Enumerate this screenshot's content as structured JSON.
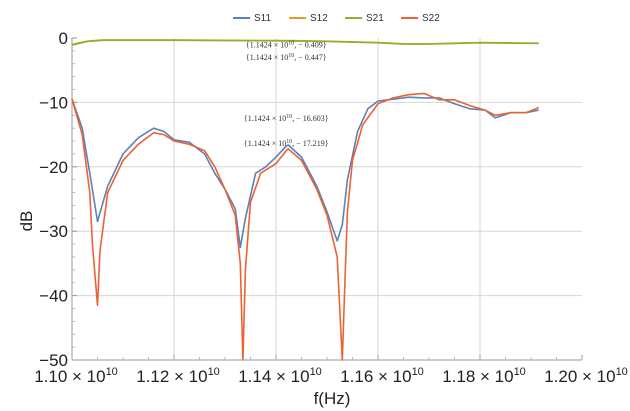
{
  "chart_data": {
    "type": "line",
    "xlabel": "f(Hz)",
    "ylabel": "dB",
    "xlim": [
      11000000000.0,
      12000000000.0
    ],
    "ylim": [
      -50,
      0
    ],
    "x_tick_labels": [
      {
        "value": 11000000000.0,
        "mantissa": "1.10",
        "base": "× 10",
        "exp": "10"
      },
      {
        "value": 11200000000.0,
        "mantissa": "1.12",
        "base": "× 10",
        "exp": "10"
      },
      {
        "value": 11400000000.0,
        "mantissa": "1.14",
        "base": "× 10",
        "exp": "10"
      },
      {
        "value": 11600000000.0,
        "mantissa": "1.16",
        "base": "× 10",
        "exp": "10"
      },
      {
        "value": 11800000000.0,
        "mantissa": "1.18",
        "base": "× 10",
        "exp": "10"
      },
      {
        "value": 12000000000.0,
        "mantissa": "1.20",
        "base": "× 10",
        "exp": "10"
      }
    ],
    "y_ticks": [
      0,
      -10,
      -20,
      -30,
      -40,
      -50
    ],
    "y_tick_labels": [
      "0",
      "−10",
      "−20",
      "−30",
      "−40",
      "−50"
    ],
    "grid": true,
    "legend_position": "top-center",
    "series": [
      {
        "name": "S11",
        "color": "#5e81b5",
        "x": [
          11000000000.0,
          11020000000.0,
          11035000000.0,
          11050000000.0,
          11070000000.0,
          11100000000.0,
          11130000000.0,
          11160000000.0,
          11180000000.0,
          11200000000.0,
          11230000000.0,
          11260000000.0,
          11280000000.0,
          11300000000.0,
          11320000000.0,
          11330000000.0,
          11340000000.0,
          11360000000.0,
          11380000000.0,
          11400000000.0,
          11420000000.0,
          11424000000.0,
          11450000000.0,
          11480000000.0,
          11500000000.0,
          11520000000.0,
          11530000000.0,
          11540000000.0,
          11560000000.0,
          11580000000.0,
          11600000000.0,
          11630000000.0,
          11660000000.0,
          11690000000.0,
          11720000000.0,
          11750000000.0,
          11780000000.0,
          11810000000.0,
          11830000000.0,
          11860000000.0,
          11890000000.0,
          11915000000.0
        ],
        "y": [
          -9.5,
          -14,
          -21,
          -28.5,
          -23,
          -18,
          -15.5,
          -14,
          -14.5,
          -15.8,
          -16.2,
          -18,
          -21,
          -23.5,
          -26.5,
          -32.5,
          -28,
          -21,
          -20,
          -18.5,
          -16.8,
          -16.6,
          -18.5,
          -23,
          -27,
          -31.5,
          -29,
          -22,
          -14.5,
          -11,
          -9.8,
          -9.5,
          -9.2,
          -9.3,
          -9.3,
          -10.2,
          -11,
          -11.2,
          -12.4,
          -11.6,
          -11.6,
          -11.2
        ]
      },
      {
        "name": "S12",
        "color": "#e19c24",
        "x": [
          11000000000.0,
          11030000000.0,
          11060000000.0,
          11100000000.0,
          11200000000.0,
          11300000000.0,
          11424000000.0,
          11500000000.0,
          11600000000.0,
          11650000000.0,
          11700000000.0,
          11800000000.0,
          11915000000.0
        ],
        "y": [
          -1.0,
          -0.5,
          -0.3,
          -0.3,
          -0.3,
          -0.35,
          -0.41,
          -0.5,
          -0.7,
          -0.9,
          -0.9,
          -0.7,
          -0.8
        ]
      },
      {
        "name": "S21",
        "color": "#8fb032",
        "x": [
          11000000000.0,
          11030000000.0,
          11060000000.0,
          11100000000.0,
          11200000000.0,
          11300000000.0,
          11424000000.0,
          11500000000.0,
          11600000000.0,
          11650000000.0,
          11700000000.0,
          11800000000.0,
          11915000000.0
        ],
        "y": [
          -1.1,
          -0.55,
          -0.35,
          -0.35,
          -0.35,
          -0.4,
          -0.45,
          -0.55,
          -0.75,
          -0.95,
          -0.95,
          -0.75,
          -0.85
        ]
      },
      {
        "name": "S22",
        "color": "#eb6235",
        "x": [
          11000000000.0,
          11020000000.0,
          11035000000.0,
          11040000000.0,
          11050000000.0,
          11055000000.0,
          11070000000.0,
          11100000000.0,
          11130000000.0,
          11160000000.0,
          11180000000.0,
          11200000000.0,
          11230000000.0,
          11260000000.0,
          11280000000.0,
          11300000000.0,
          11320000000.0,
          11330000000.0,
          11335000000.0,
          11340000000.0,
          11350000000.0,
          11370000000.0,
          11400000000.0,
          11420000000.0,
          11424000000.0,
          11450000000.0,
          11480000000.0,
          11500000000.0,
          11520000000.0,
          11530000000.0,
          11535000000.0,
          11540000000.0,
          11550000000.0,
          11570000000.0,
          11600000000.0,
          11630000000.0,
          11660000000.0,
          11690000000.0,
          11720000000.0,
          11750000000.0,
          11780000000.0,
          11810000000.0,
          11830000000.0,
          11860000000.0,
          11890000000.0,
          11915000000.0
        ],
        "y": [
          -9.5,
          -15,
          -24,
          -32,
          -41.5,
          -33,
          -24,
          -19,
          -16.5,
          -14.7,
          -15,
          -16,
          -16.5,
          -17.5,
          -20,
          -23.5,
          -27.5,
          -35,
          -50,
          -36,
          -25.5,
          -21,
          -19.5,
          -17.5,
          -17.2,
          -19,
          -23.5,
          -27.5,
          -34,
          -50,
          -38,
          -27,
          -19,
          -13.5,
          -10.2,
          -9.3,
          -8.8,
          -8.6,
          -9.6,
          -9.6,
          -10.5,
          -11.2,
          -12,
          -11.6,
          -11.6,
          -10.8
        ]
      }
    ],
    "annotations": [
      {
        "text_pre": "{1.1424 × 10",
        "exp": "10",
        "text_post": ", − 0.409}",
        "x": 11424000000.0,
        "y": -0.409,
        "placement": "below-point"
      },
      {
        "text_pre": "{1.1424 × 10",
        "exp": "10",
        "text_post": ", − 0.447}",
        "x": 11424000000.0,
        "y": -0.447,
        "placement": "below-point-2"
      },
      {
        "text_pre": "{1.1424 × 10",
        "exp": "10",
        "text_post": ", − 16.603}",
        "x": 11424000000.0,
        "y": -16.603,
        "placement": "above-point"
      },
      {
        "text_pre": "{1.1424 × 10",
        "exp": "10",
        "text_post": ", − 17.219}",
        "x": 11424000000.0,
        "y": -17.219,
        "placement": "above-point-2"
      }
    ]
  }
}
